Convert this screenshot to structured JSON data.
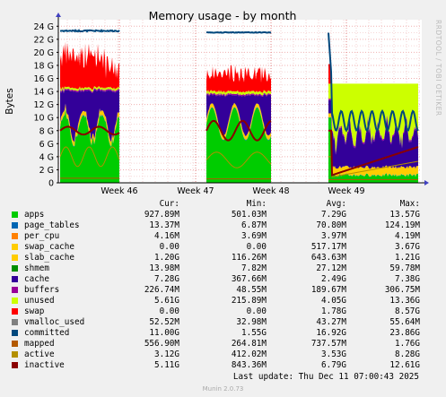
{
  "chart_data": {
    "type": "area",
    "title": "Memory usage - by month",
    "ylabel": "Bytes",
    "y_ticks": [
      "0",
      "2 G",
      "4 G",
      "6 G",
      "8 G",
      "10 G",
      "12 G",
      "14 G",
      "16 G",
      "18 G",
      "20 G",
      "22 G",
      "24 G"
    ],
    "ylim": [
      0,
      25
    ],
    "x_ticks": [
      "Week 46",
      "Week 47",
      "Week 48",
      "Week 49"
    ],
    "side_label": "RRDTOOL / TOBI OETIKER",
    "grid": true
  },
  "legend": {
    "headers": {
      "cur": "Cur:",
      "min": "Min:",
      "avg": "Avg:",
      "max": "Max:"
    },
    "rows": [
      {
        "name": "apps",
        "color": "#00cc00",
        "cur": "927.89M",
        "min": "501.03M",
        "avg": "7.29G",
        "max": "13.57G"
      },
      {
        "name": "page_tables",
        "color": "#0066b3",
        "cur": "13.37M",
        "min": "6.87M",
        "avg": "70.80M",
        "max": "124.19M"
      },
      {
        "name": "per_cpu",
        "color": "#ff8000",
        "cur": "4.16M",
        "min": "3.69M",
        "avg": "3.97M",
        "max": "4.19M"
      },
      {
        "name": "swap_cache",
        "color": "#ffcc00",
        "cur": "0.00",
        "min": "0.00",
        "avg": "517.17M",
        "max": "3.67G"
      },
      {
        "name": "slab_cache",
        "color": "#ffcc00",
        "cur": "1.20G",
        "min": "116.26M",
        "avg": "643.63M",
        "max": "1.21G"
      },
      {
        "name": "shmem",
        "color": "#008f00",
        "cur": "13.98M",
        "min": "7.82M",
        "avg": "27.12M",
        "max": "59.78M"
      },
      {
        "name": "cache",
        "color": "#330099",
        "cur": "7.28G",
        "min": "367.66M",
        "avg": "2.49G",
        "max": "7.38G"
      },
      {
        "name": "buffers",
        "color": "#990099",
        "cur": "226.74M",
        "min": "48.55M",
        "avg": "189.67M",
        "max": "306.75M"
      },
      {
        "name": "unused",
        "color": "#ccff00",
        "cur": "5.61G",
        "min": "215.89M",
        "avg": "4.05G",
        "max": "13.36G"
      },
      {
        "name": "swap",
        "color": "#ff0000",
        "cur": "0.00",
        "min": "0.00",
        "avg": "1.78G",
        "max": "8.57G"
      },
      {
        "name": "vmalloc_used",
        "color": "#808080",
        "cur": "52.52M",
        "min": "32.98M",
        "avg": "43.27M",
        "max": "55.64M"
      },
      {
        "name": "committed",
        "color": "#00487d",
        "cur": "11.00G",
        "min": "1.55G",
        "avg": "16.92G",
        "max": "23.86G"
      },
      {
        "name": "mapped",
        "color": "#b35a00",
        "cur": "556.90M",
        "min": "264.81M",
        "avg": "737.57M",
        "max": "1.76G"
      },
      {
        "name": "active",
        "color": "#b38f00",
        "cur": "3.12G",
        "min": "412.02M",
        "avg": "3.53G",
        "max": "8.28G"
      },
      {
        "name": "inactive",
        "color": "#8a0000",
        "cur": "5.11G",
        "min": "843.36M",
        "avg": "6.79G",
        "max": "12.61G"
      }
    ]
  },
  "footer": {
    "last_update": "Last update: Thu Dec 11 07:00:43 2025",
    "munin": "Munin 2.0.73"
  }
}
